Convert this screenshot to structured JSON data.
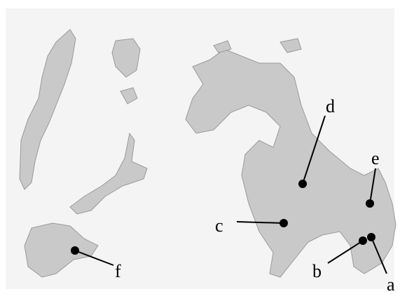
{
  "markers": [
    {
      "label": "a"
    },
    {
      "label": "b"
    },
    {
      "label": "c"
    },
    {
      "label": "d"
    },
    {
      "label": "e"
    },
    {
      "label": "f"
    }
  ]
}
